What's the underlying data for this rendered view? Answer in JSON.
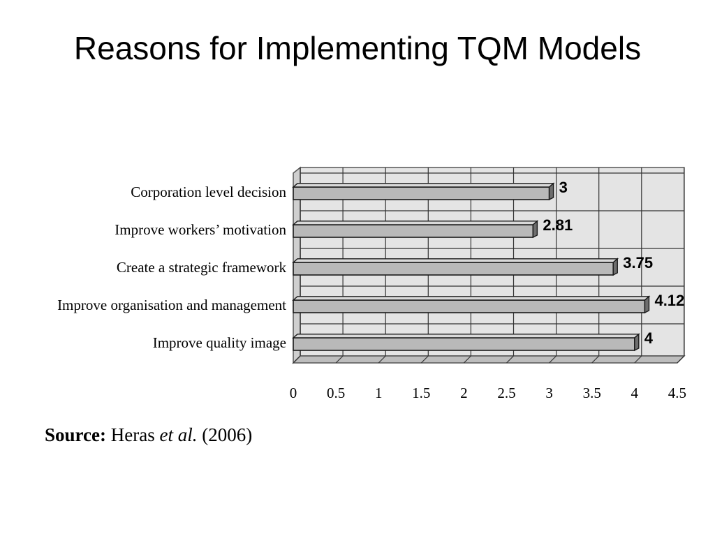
{
  "slide": {
    "title": "Reasons for Implementing TQM Models"
  },
  "source": {
    "prefix": "Source:",
    "author": "Heras",
    "etal": "et al.",
    "year": "(2006)"
  },
  "chart_data": {
    "type": "bar",
    "orientation": "horizontal",
    "categories": [
      "Corporation level decision",
      "Improve workers’ motivation",
      "Create a strategic framework",
      "Improve organisation and management",
      "Improve quality image"
    ],
    "values": [
      3,
      2.81,
      3.75,
      4.12,
      4
    ],
    "data_labels": [
      "3",
      "2.81",
      "3.75",
      "4.12",
      "4"
    ],
    "xlim": [
      0,
      4.5
    ],
    "xticks": [
      0,
      0.5,
      1,
      1.5,
      2,
      2.5,
      3,
      3.5,
      4,
      4.5
    ],
    "xtick_labels": [
      "0",
      "0.5",
      "1",
      "1.5",
      "2",
      "2.5",
      "3",
      "3.5",
      "4",
      "4.5"
    ],
    "grid": true,
    "legend": "none",
    "style": "3d",
    "colors": {
      "bar": "#b9b9b9",
      "bar_top": "#d9d9d9",
      "bar_edge": "#1a1a1a",
      "plot_bg": "#e4e4e4",
      "floor": "#bdbdbd"
    }
  }
}
